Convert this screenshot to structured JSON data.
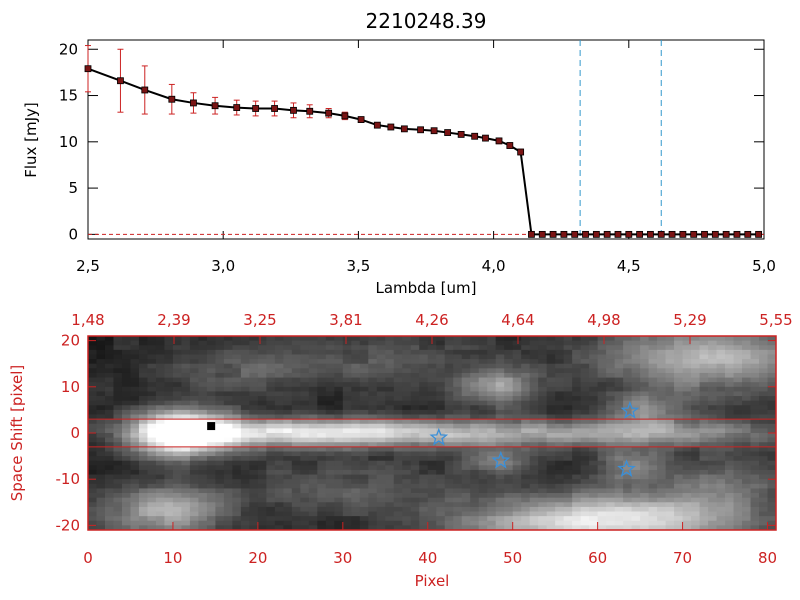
{
  "title": "2210248.39",
  "colors": {
    "black": "#000000",
    "red": "#cc2222",
    "marker": "#7a1414",
    "dashed_blue": "#3399cc",
    "star": "#3a8fd8"
  },
  "chart_data": [
    {
      "type": "line",
      "title": "2210248.39",
      "xlabel": "Lambda [um]",
      "ylabel": "Flux [mJy]",
      "xlim": [
        2.5,
        5.0
      ],
      "ylim": [
        -0.5,
        21
      ],
      "x_ticks": [
        "2.5",
        "3.0",
        "3.5",
        "4.0",
        "4.5",
        "5.0"
      ],
      "y_ticks": [
        "0",
        "5",
        "10",
        "15",
        "20"
      ],
      "series": [
        {
          "x": [
            2.5,
            2.62,
            2.71,
            2.81,
            2.89,
            2.97,
            3.05,
            3.12,
            3.19,
            3.26,
            3.32,
            3.39,
            3.45,
            3.51,
            3.57,
            3.62,
            3.67,
            3.73,
            3.78,
            3.83,
            3.88,
            3.93,
            3.97,
            4.02,
            4.06,
            4.1,
            4.14,
            4.18,
            4.22,
            4.26,
            4.3,
            4.34,
            4.38,
            4.42,
            4.46,
            4.5,
            4.54,
            4.58,
            4.62,
            4.66,
            4.7,
            4.74,
            4.78,
            4.82,
            4.86,
            4.9,
            4.94,
            4.98
          ],
          "y": [
            17.9,
            16.6,
            15.6,
            14.6,
            14.2,
            13.9,
            13.7,
            13.6,
            13.6,
            13.4,
            13.3,
            13.1,
            12.8,
            12.4,
            11.8,
            11.6,
            11.4,
            11.3,
            11.2,
            11.0,
            10.8,
            10.6,
            10.4,
            10.1,
            9.6,
            8.9,
            0,
            0,
            0,
            0,
            0,
            0,
            0,
            0,
            0,
            0,
            0,
            0,
            0,
            0,
            0,
            0,
            0,
            0,
            0,
            0,
            0,
            0
          ],
          "yerr": [
            2.5,
            3.4,
            2.6,
            1.6,
            1.1,
            0.9,
            0.8,
            0.8,
            0.8,
            0.8,
            0.7,
            0.5,
            0.4,
            0.3,
            0.2,
            0.2,
            0.2,
            0.2,
            0.2,
            0.2,
            0.2,
            0.2,
            0.2,
            0.3,
            0.3,
            0.3,
            0,
            0,
            0,
            0,
            0,
            0,
            0,
            0,
            0,
            0,
            0,
            0,
            0,
            0,
            0,
            0,
            0,
            0,
            0,
            0,
            0,
            0
          ]
        }
      ],
      "vlines": [
        4.32,
        4.62
      ],
      "hline": 0
    },
    {
      "type": "heatmap",
      "xlabel": "Pixel",
      "ylabel": "Space Shift [pixel]",
      "xlim": [
        0,
        81
      ],
      "ylim": [
        -21,
        21
      ],
      "x_ticks": [
        "0",
        "10",
        "20",
        "30",
        "40",
        "50",
        "60",
        "70",
        "80"
      ],
      "y_ticks": [
        "-20",
        "-10",
        "0",
        "10",
        "20"
      ],
      "top_axis_ticks": [
        "1.48",
        "2.39",
        "3.25",
        "3.81",
        "4.26",
        "4.64",
        "4.98",
        "5.29",
        "5.55"
      ],
      "trace_lines": [
        3,
        -3
      ],
      "black_marker": {
        "x": 14.5,
        "y": 1.5
      },
      "stars": [
        {
          "x": 41.3,
          "y": -1.0
        },
        {
          "x": 48.6,
          "y": -6.0
        },
        {
          "x": 63.8,
          "y": 4.8
        },
        {
          "x": 63.4,
          "y": -7.8
        }
      ],
      "blobs": [
        {
          "x": 11,
          "y": 0,
          "sx": 4,
          "sy": 3.5,
          "a": 1.0
        },
        {
          "x": 24,
          "y": 0,
          "sx": 11,
          "sy": 2.3,
          "a": 0.55
        },
        {
          "x": 46,
          "y": 0,
          "sx": 18,
          "sy": 2.2,
          "a": 0.45
        },
        {
          "x": 70,
          "y": 0,
          "sx": 10,
          "sy": 2.0,
          "a": 0.25
        },
        {
          "x": 48,
          "y": 10,
          "sx": 3,
          "sy": 3,
          "a": 0.45
        },
        {
          "x": 73,
          "y": 16,
          "sx": 9,
          "sy": 5,
          "a": 0.55
        },
        {
          "x": 9,
          "y": -17,
          "sx": 5,
          "sy": 4,
          "a": 0.5
        },
        {
          "x": 60,
          "y": -19,
          "sx": 11,
          "sy": 4,
          "a": 0.75
        },
        {
          "x": 64,
          "y": -7,
          "sx": 3,
          "sy": 2.5,
          "a": 0.35
        },
        {
          "x": 66,
          "y": 5,
          "sx": 3,
          "sy": 2.5,
          "a": 0.35
        },
        {
          "x": 48,
          "y": -6,
          "sx": 3,
          "sy": 2,
          "a": 0.35
        },
        {
          "x": 18,
          "y": 14,
          "sx": 7,
          "sy": 4,
          "a": 0.2
        },
        {
          "x": 30,
          "y": -12,
          "sx": 9,
          "sy": 4,
          "a": 0.2
        },
        {
          "x": 36,
          "y": 15,
          "sx": 8,
          "sy": 4,
          "a": 0.18
        },
        {
          "x": 74,
          "y": -12,
          "sx": 6,
          "sy": 5,
          "a": 0.25
        }
      ]
    }
  ]
}
